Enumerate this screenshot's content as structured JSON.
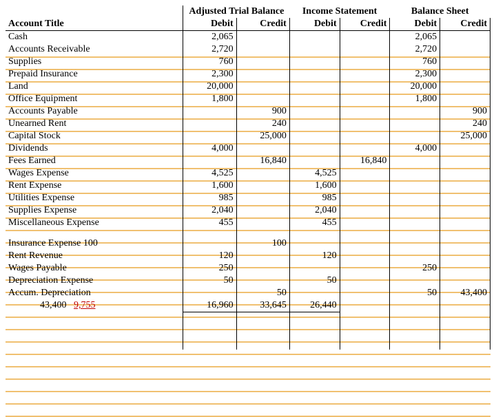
{
  "headers": {
    "account": "Account Title",
    "atb": "Adjusted Trial Balance",
    "is": "Income Statement",
    "bs": "Balance Sheet",
    "debit": "Debit",
    "credit": "Credit"
  },
  "colors": {
    "stripe": "#f0c070",
    "text": "#000000",
    "background": "#ffffff",
    "error": "#c00000"
  },
  "rows": [
    {
      "t": "Cash",
      "atb_d": "2,065",
      "bs_d": "2,065"
    },
    {
      "t": "Accounts Receivable",
      "atb_d": "2,720",
      "bs_d": "2,720"
    },
    {
      "t": "Supplies",
      "atb_d": "760",
      "bs_d": "760"
    },
    {
      "t": "Prepaid Insurance",
      "atb_d": "2,300",
      "bs_d": "2,300"
    },
    {
      "t": "Land",
      "atb_d": "20,000",
      "bs_d": "20,000"
    },
    {
      "t": "Office Equipment",
      "atb_d": "1,800",
      "bs_d": "1,800"
    },
    {
      "t": "Accounts Payable",
      "atb_c": "900",
      "bs_c": "900"
    },
    {
      "t": "Unearned Rent",
      "atb_c": "240",
      "bs_c": "240"
    },
    {
      "t": "Capital Stock",
      "atb_c": "25,000",
      "bs_c": "25,000"
    },
    {
      "t": "Dividends",
      "atb_d": "4,000",
      "bs_d": "4,000"
    },
    {
      "t": "Fees Earned",
      "atb_c": "16,840",
      "is_c": "16,840"
    },
    {
      "t": "Wages Expense",
      "atb_d": "4,525",
      "is_d": "4,525"
    },
    {
      "t": "Rent Expense",
      "atb_d": "1,600",
      "is_d": "1,600"
    },
    {
      "t": "Utilities Expense",
      "atb_d": "985",
      "is_d": "985"
    },
    {
      "t": "Supplies Expense",
      "atb_d": "2,040",
      "is_d": "2,040"
    },
    {
      "t": "Miscellaneous Expense",
      "atb_d": "455",
      "is_d": "455"
    }
  ],
  "rows2": [
    {
      "t": "Insurance Expense 100",
      "atb_c": "100"
    },
    {
      "t": "Rent Revenue",
      "atb_d": "120",
      "is_d": "120"
    },
    {
      "t": "Wages Payable",
      "atb_d": "250",
      "bs_d": "250"
    },
    {
      "t": "Depreciation Expense",
      "atb_d": "50",
      "is_d": "50"
    },
    {
      "t": "Accum. Depreciation",
      "atb_c": "50",
      "bs_d": "50",
      "bs_c": "43,400"
    }
  ],
  "totals": {
    "label_left": "43,400",
    "label_err": "9,755",
    "atb_d": "16,960",
    "atb_c": "33,645",
    "is_d": "26,440"
  }
}
